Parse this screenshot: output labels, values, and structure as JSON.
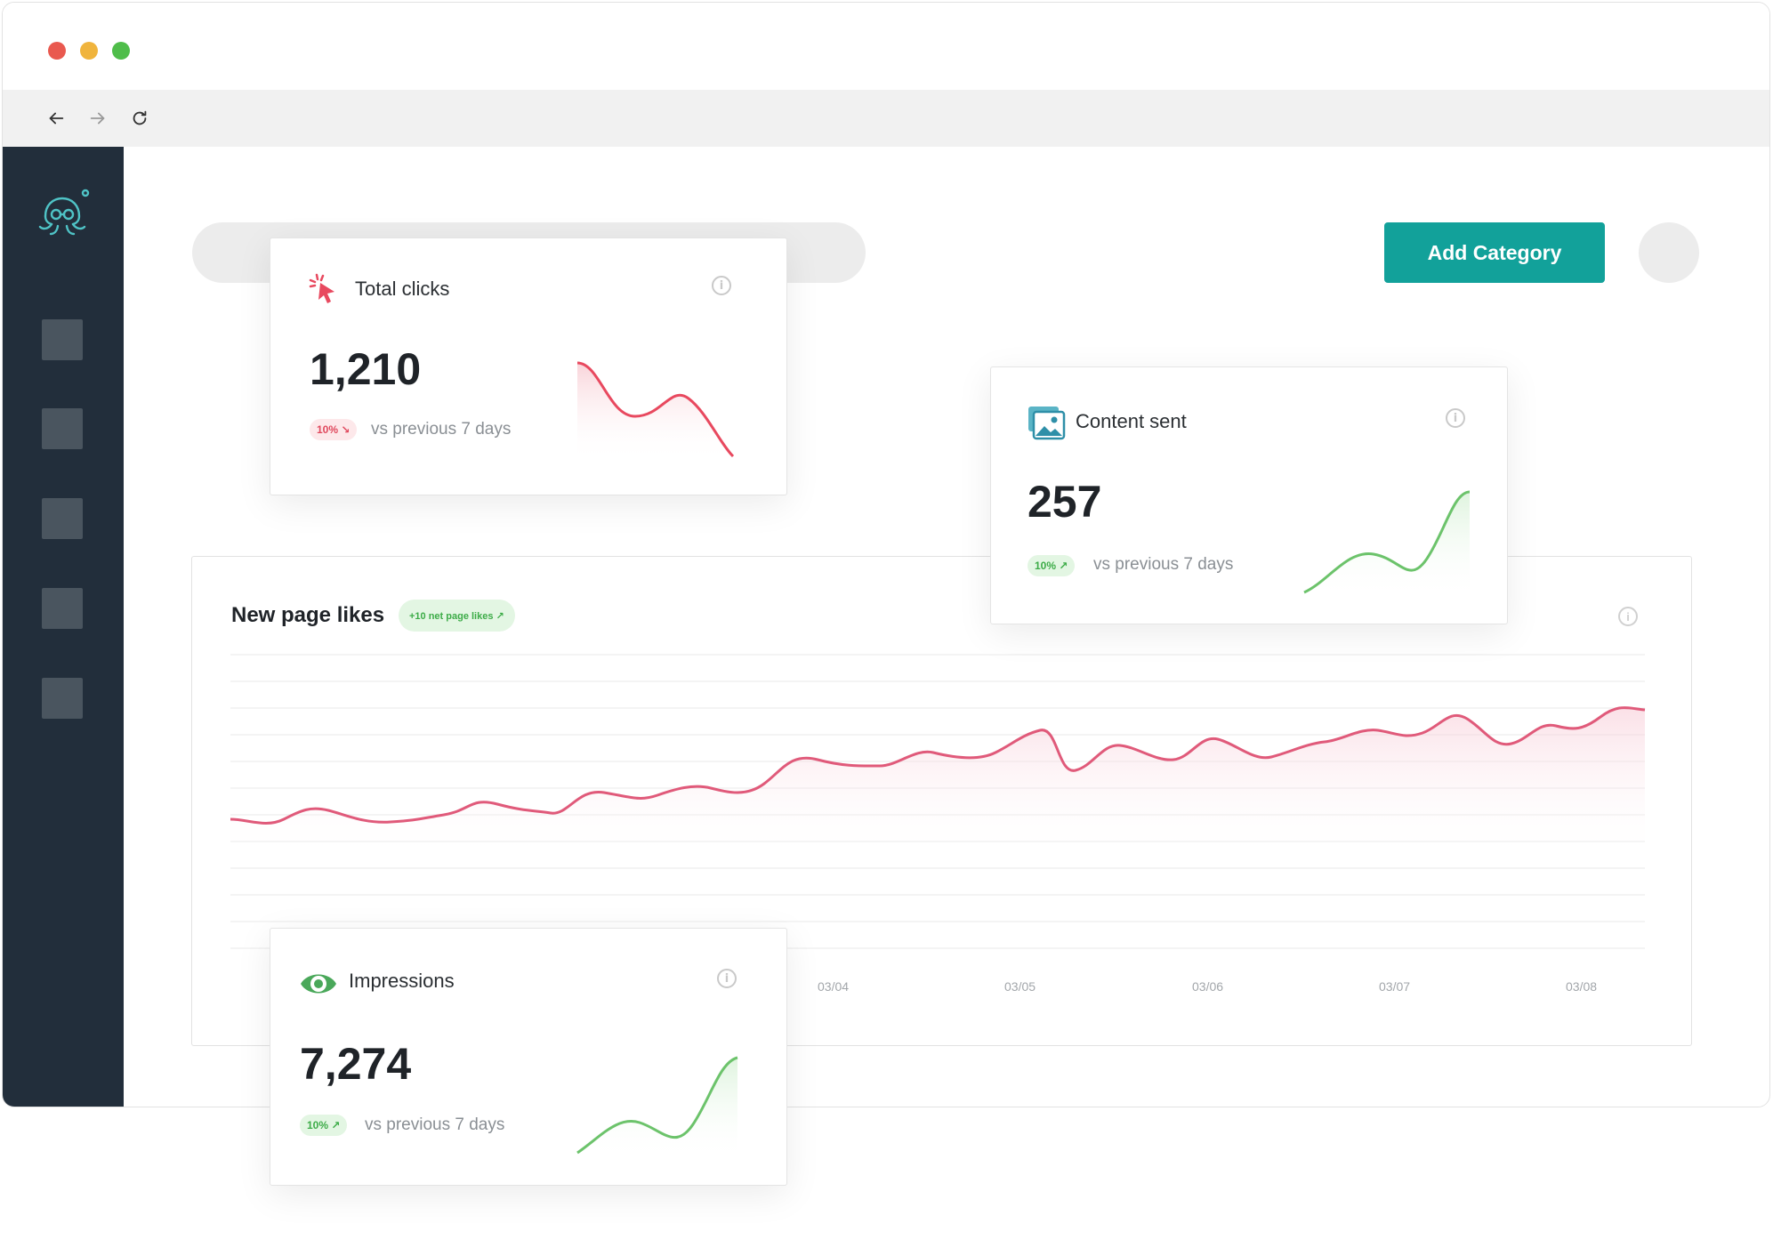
{
  "browser": {
    "back_icon": "arrow-left-icon",
    "forward_icon": "arrow-right-icon",
    "reload_icon": "reload-icon"
  },
  "header": {
    "add_button_label": "Add Category"
  },
  "cards": {
    "total_clicks": {
      "title": "Total clicks",
      "value": "1,210",
      "badge": "10% ↘",
      "comparison": "vs previous 7 days",
      "trend": "down",
      "color": "#e8495f"
    },
    "content_sent": {
      "title": "Content sent",
      "value": "257",
      "badge": "10% ↗",
      "comparison": "vs previous 7 days",
      "trend": "up",
      "color": "#6cc36b"
    },
    "impressions": {
      "title": "Impressions",
      "value": "7,274",
      "badge": "10% ↗",
      "comparison": "vs previous 7 days",
      "trend": "up",
      "color": "#6cc36b"
    }
  },
  "page_likes": {
    "title": "New page likes",
    "badge": "+10 net page likes ↗",
    "x_ticks": [
      "03/04",
      "03/05",
      "03/06",
      "03/07",
      "03/08"
    ],
    "line_color": "#e05a7a"
  }
}
